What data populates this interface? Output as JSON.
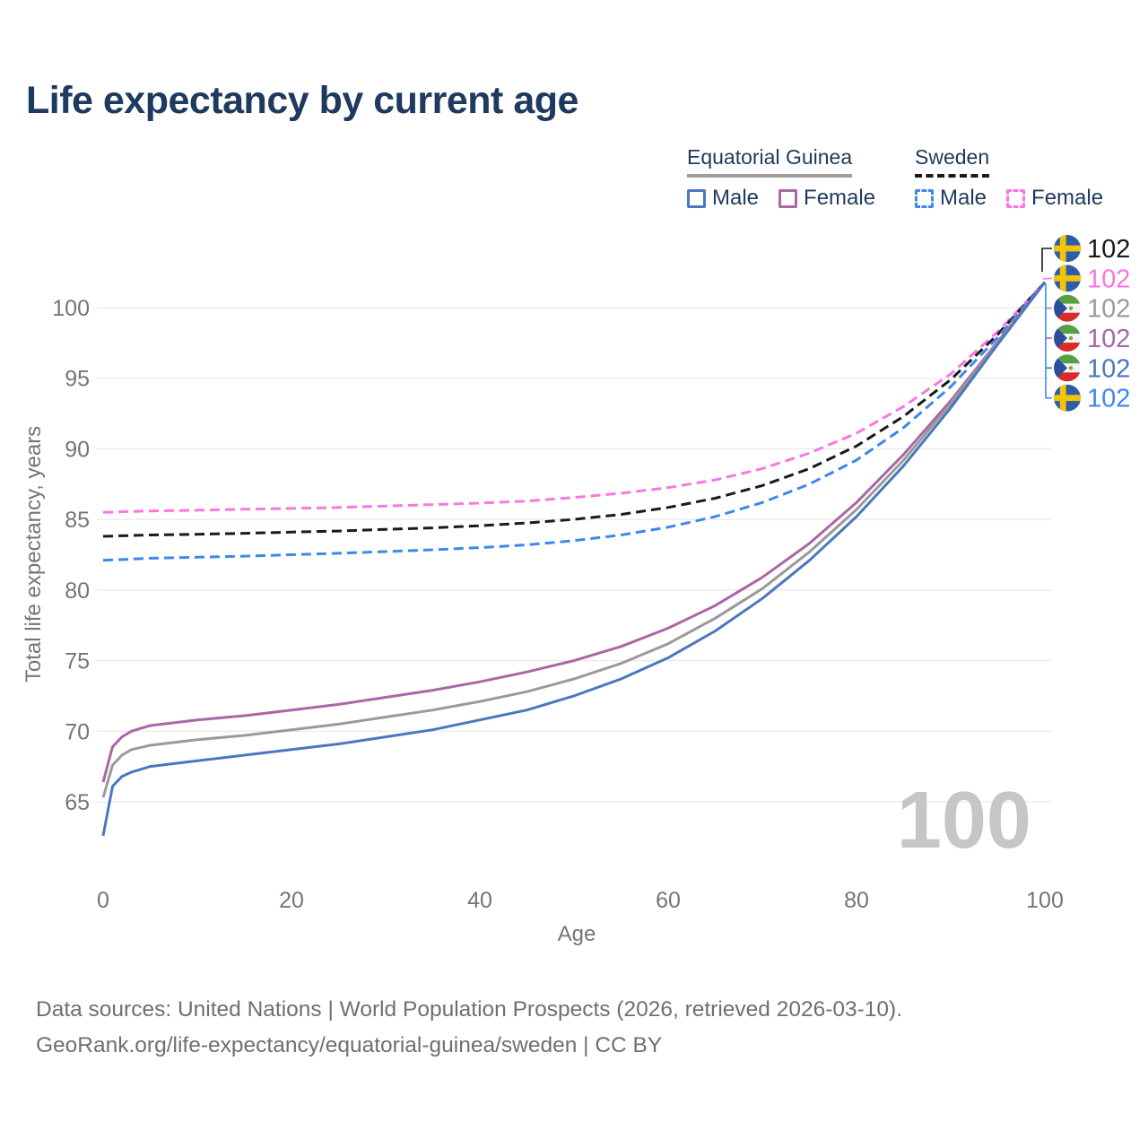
{
  "title": "Life expectancy by current age",
  "legend": {
    "groups": [
      {
        "name": "Equatorial Guinea",
        "line_style": "solid",
        "underline_color": "#9e9e9e",
        "items": [
          {
            "label": "Male",
            "color": "#4a77bd",
            "dashed": false
          },
          {
            "label": "Female",
            "color": "#aa66a6",
            "dashed": false
          }
        ]
      },
      {
        "name": "Sweden",
        "line_style": "dashed",
        "underline_color": "#1a1a1a",
        "items": [
          {
            "label": "Male",
            "color": "#3f87ee",
            "dashed": true
          },
          {
            "label": "Female",
            "color": "#fb76e1",
            "dashed": true
          }
        ]
      }
    ]
  },
  "chart_data": {
    "type": "line",
    "title": "Life expectancy by current age",
    "xlabel": "Age",
    "ylabel": "Total life expectancy, years",
    "xlim": [
      0,
      100
    ],
    "ylim": [
      62,
      103
    ],
    "xticks": [
      0,
      20,
      40,
      60,
      80,
      100
    ],
    "yticks": [
      65,
      70,
      75,
      80,
      85,
      90,
      95,
      100
    ],
    "grid": true,
    "legend_position": "top-right",
    "watermark_age": "100",
    "x": [
      0,
      1,
      2,
      3,
      4,
      5,
      10,
      15,
      20,
      25,
      30,
      35,
      40,
      45,
      50,
      55,
      60,
      65,
      70,
      75,
      80,
      85,
      90,
      95,
      100
    ],
    "series": [
      {
        "name": "Sweden Female",
        "country": "Sweden",
        "sex": "Female",
        "color": "#fb76e1",
        "dashed": true,
        "values": [
          85.5,
          85.52,
          85.54,
          85.56,
          85.58,
          85.6,
          85.65,
          85.72,
          85.78,
          85.85,
          85.95,
          86.05,
          86.15,
          86.3,
          86.55,
          86.85,
          87.25,
          87.8,
          88.6,
          89.7,
          91.1,
          93.0,
          95.3,
          98.3,
          101.8
        ]
      },
      {
        "name": "Sweden Both sexes",
        "country": "Sweden",
        "sex": "Both",
        "color": "#1a1a1a",
        "dashed": true,
        "values": [
          83.8,
          83.82,
          83.84,
          83.86,
          83.88,
          83.9,
          83.95,
          84.02,
          84.1,
          84.18,
          84.3,
          84.4,
          84.55,
          84.75,
          85.0,
          85.35,
          85.85,
          86.5,
          87.4,
          88.6,
          90.2,
          92.3,
          94.9,
          98.1,
          101.8
        ]
      },
      {
        "name": "Sweden Male",
        "country": "Sweden",
        "sex": "Male",
        "color": "#3f87ee",
        "dashed": true,
        "values": [
          82.1,
          82.13,
          82.16,
          82.19,
          82.22,
          82.25,
          82.32,
          82.4,
          82.5,
          82.6,
          82.72,
          82.85,
          83.0,
          83.2,
          83.5,
          83.9,
          84.45,
          85.2,
          86.2,
          87.5,
          89.2,
          91.5,
          94.4,
          97.9,
          101.8
        ]
      },
      {
        "name": "Equatorial Guinea Female",
        "country": "Equatorial Guinea",
        "sex": "Female",
        "color": "#aa66a6",
        "dashed": false,
        "values": [
          66.4,
          68.9,
          69.6,
          70.0,
          70.2,
          70.4,
          70.8,
          71.1,
          71.5,
          71.9,
          72.4,
          72.9,
          73.5,
          74.2,
          75.0,
          76.0,
          77.3,
          78.9,
          80.9,
          83.3,
          86.2,
          89.6,
          93.4,
          97.6,
          101.8
        ]
      },
      {
        "name": "Equatorial Guinea Both sexes",
        "country": "Equatorial Guinea",
        "sex": "Both",
        "color": "#9a9a9a",
        "dashed": false,
        "values": [
          65.3,
          67.6,
          68.3,
          68.7,
          68.85,
          69.0,
          69.4,
          69.7,
          70.1,
          70.5,
          71.0,
          71.5,
          72.1,
          72.8,
          73.7,
          74.8,
          76.2,
          78.0,
          80.1,
          82.7,
          85.7,
          89.2,
          93.2,
          97.5,
          101.8
        ]
      },
      {
        "name": "Equatorial Guinea Male",
        "country": "Equatorial Guinea",
        "sex": "Male",
        "color": "#4a77bd",
        "dashed": false,
        "values": [
          62.6,
          66.1,
          66.8,
          67.1,
          67.3,
          67.5,
          67.9,
          68.3,
          68.7,
          69.1,
          69.6,
          70.1,
          70.8,
          71.5,
          72.5,
          73.7,
          75.2,
          77.1,
          79.4,
          82.1,
          85.2,
          88.8,
          92.9,
          97.4,
          101.8
        ]
      }
    ],
    "end_labels": [
      {
        "flag": "sweden",
        "value": "102",
        "color": "#1a1a1a"
      },
      {
        "flag": "sweden",
        "value": "102",
        "color": "#fb76e1"
      },
      {
        "flag": "equatorial-guinea",
        "value": "102",
        "color": "#9a9a9a"
      },
      {
        "flag": "equatorial-guinea",
        "value": "102",
        "color": "#aa66a6"
      },
      {
        "flag": "equatorial-guinea",
        "value": "102",
        "color": "#4a77bd"
      },
      {
        "flag": "sweden",
        "value": "102",
        "color": "#3f87ee"
      }
    ]
  },
  "footer": {
    "line1": "Data sources: United Nations | World Population Prospects (2026, retrieved 2026-03-10).",
    "line2": "GeoRank.org/life-expectancy/equatorial-guinea/sweden | CC BY"
  }
}
